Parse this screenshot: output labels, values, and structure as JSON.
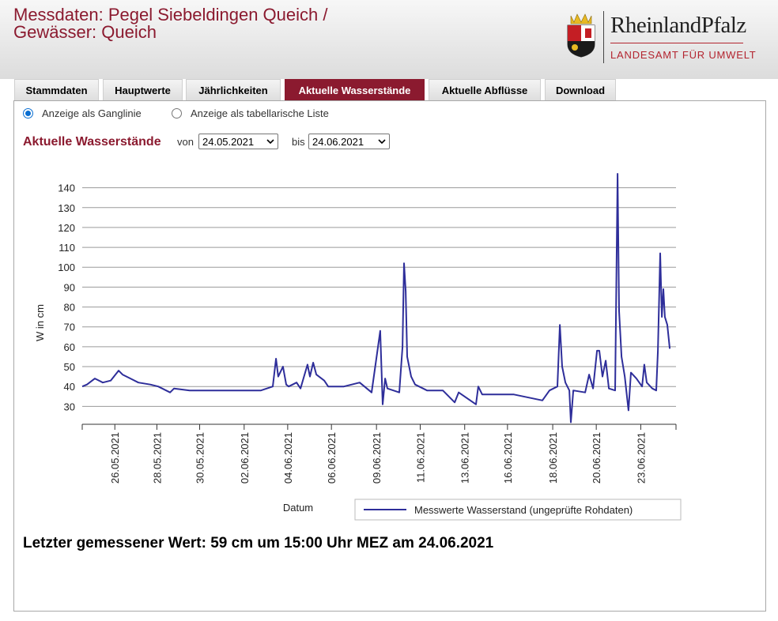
{
  "header": {
    "title_lines": [
      "Messdaten: Pegel Siebeldingen Queich /",
      "Gewässer: Queich"
    ],
    "logo_name": "RheinlandPfalz",
    "logo_sub": "LANDESAMT FÜR UMWELT"
  },
  "tabs": [
    "Stammdaten",
    "Hauptwerte",
    "Jährlichkeiten",
    "Aktuelle Wasserstände",
    "Aktuelle Abflüsse",
    "Download"
  ],
  "active_tab": 3,
  "radio_options": [
    "Anzeige als Ganglinie",
    "Anzeige als tabellarische Liste"
  ],
  "selected_radio": 0,
  "heading": "Aktuelle Wasserstände",
  "from_label": "von",
  "from_value": "24.05.2021",
  "to_label": "bis",
  "to_value": "24.06.2021",
  "chart_data": {
    "type": "line",
    "xlabel": "Datum",
    "ylabel": "W in cm",
    "xlim": [
      0,
      31.5
    ],
    "ylim": [
      21,
      147
    ],
    "yticks": [
      30,
      40,
      50,
      60,
      70,
      80,
      90,
      100,
      110,
      120,
      130,
      140
    ],
    "xticks": [
      {
        "value": 1.73,
        "label": "26.05.2021"
      },
      {
        "value": 3.96,
        "label": "28.05.2021"
      },
      {
        "value": 6.23,
        "label": "30.05.2021"
      },
      {
        "value": 8.59,
        "label": "02.06.2021"
      },
      {
        "value": 10.9,
        "label": "04.06.2021"
      },
      {
        "value": 13.22,
        "label": "06.06.2021"
      },
      {
        "value": 15.61,
        "label": "09.06.2021"
      },
      {
        "value": 17.93,
        "label": "11.06.2021"
      },
      {
        "value": 20.29,
        "label": "13.06.2021"
      },
      {
        "value": 22.56,
        "label": "16.06.2021"
      },
      {
        "value": 24.96,
        "label": "18.06.2021"
      },
      {
        "value": 27.27,
        "label": "20.06.2021"
      },
      {
        "value": 29.63,
        "label": "23.06.2021"
      }
    ],
    "grid": true,
    "legend": "bottom-right",
    "series": [
      {
        "name": "Messwerte Wasserstand (ungeprüfte Rohdaten)",
        "color": "#2e2e9a",
        "x": [
          0,
          0.25,
          0.67,
          1.09,
          1.51,
          1.93,
          2.14,
          2.56,
          2.98,
          3.61,
          4.03,
          4.66,
          4.87,
          5.7,
          6.96,
          8.22,
          9.48,
          10.11,
          10.28,
          10.4,
          10.65,
          10.82,
          10.95,
          11.37,
          11.58,
          11.95,
          12.08,
          12.25,
          12.42,
          12.84,
          13.05,
          13.88,
          14.72,
          15.35,
          15.81,
          15.94,
          16.07,
          16.19,
          16.82,
          16.99,
          17.07,
          17.16,
          17.24,
          17.45,
          17.66,
          18.29,
          19.13,
          19.76,
          19.97,
          20.89,
          21.01,
          21.22,
          22.9,
          24.41,
          24.79,
          25.21,
          25.34,
          25.46,
          25.63,
          25.84,
          25.92,
          26.05,
          26.68,
          26.89,
          27.1,
          27.31,
          27.43,
          27.6,
          27.77,
          27.94,
          28.27,
          28.4,
          28.48,
          28.61,
          28.78,
          28.98,
          29.11,
          29.4,
          29.7,
          29.82,
          29.95,
          30.24,
          30.45,
          30.54,
          30.66,
          30.75,
          30.83,
          30.91,
          31.04,
          31.17
        ],
        "values": [
          40,
          41,
          44,
          42,
          43,
          48,
          46,
          44,
          42,
          41,
          40,
          37,
          39,
          38,
          38,
          38,
          38,
          40,
          54,
          45,
          50,
          41,
          40,
          42,
          39,
          51,
          45,
          52,
          46,
          43,
          40,
          40,
          42,
          37,
          68,
          31,
          44,
          39,
          37,
          60,
          102,
          88,
          55,
          45,
          41,
          38,
          38,
          32,
          37,
          31,
          40,
          36,
          36,
          33,
          38,
          40,
          71,
          50,
          42,
          38,
          22,
          38,
          37,
          46,
          39,
          58,
          58,
          45,
          53,
          39,
          38,
          147,
          78,
          55,
          45,
          28,
          47,
          44,
          40,
          51,
          42,
          39,
          38,
          58,
          107,
          75,
          89,
          75,
          71,
          59
        ]
      }
    ]
  },
  "latest": "Letzter gemessener Wert: 59 cm um 15:00 Uhr MEZ am 24.06.2021"
}
